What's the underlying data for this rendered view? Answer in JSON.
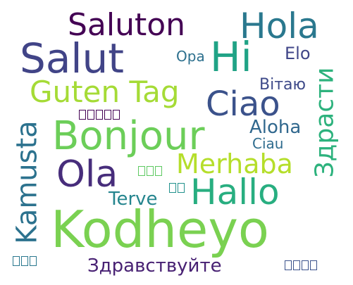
{
  "words": [
    {
      "key": "kodheyo",
      "text": "Kodheyo",
      "color": "#7ad151"
    },
    {
      "key": "bonjour",
      "text": "Bonjour",
      "color": "#6cce59"
    },
    {
      "key": "salut",
      "text": "Salut",
      "color": "#414487"
    },
    {
      "key": "hi",
      "text": "Hi",
      "color": "#20a386"
    },
    {
      "key": "hola",
      "text": "Hola",
      "color": "#2a788e"
    },
    {
      "key": "saluton",
      "text": "Saluton",
      "color": "#440154"
    },
    {
      "key": "guten_tag",
      "text": "Guten Tag",
      "color": "#a5db36"
    },
    {
      "key": "ciao",
      "text": "Ciao",
      "color": "#3b528b"
    },
    {
      "key": "ola",
      "text": "Ola",
      "color": "#472d7b"
    },
    {
      "key": "hallo",
      "text": "Hallo",
      "color": "#28ae80"
    },
    {
      "key": "merhaba",
      "text": "Merhaba",
      "color": "#b5de2b"
    },
    {
      "key": "kamusta",
      "text": "Kamusta",
      "color": "#2c728e"
    },
    {
      "key": "zdrasti",
      "text": "Здрасти",
      "color": "#2db27d"
    },
    {
      "key": "zdravstvuyte",
      "text": "Здравствуйте",
      "color": "#482173"
    },
    {
      "key": "aloha",
      "text": "Aloha",
      "color": "#31688e"
    },
    {
      "key": "vitayu",
      "text": "Вітаю",
      "color": "#3e4a89"
    },
    {
      "key": "ciau",
      "text": "Ciau",
      "color": "#2f6c8e"
    },
    {
      "key": "terve",
      "text": "Terve",
      "color": "#25858e"
    },
    {
      "key": "opa",
      "text": "Opa",
      "color": "#2d708e"
    },
    {
      "key": "elo",
      "text": "Elo",
      "color": "#404688"
    },
    {
      "key": "boxes_a",
      "text": "",
      "color": "#440154"
    },
    {
      "key": "boxes_b",
      "text": "",
      "color": "#5ec962"
    },
    {
      "key": "boxes_c",
      "text": "",
      "color": "#21918c"
    },
    {
      "key": "boxes_d",
      "text": "",
      "color": "#2a788e"
    },
    {
      "key": "boxes_e",
      "text": "",
      "color": "#3b528b"
    }
  ]
}
